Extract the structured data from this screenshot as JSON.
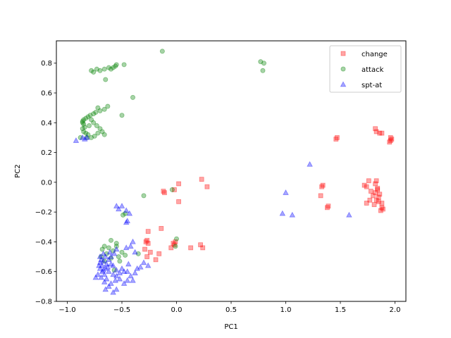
{
  "chart_data": {
    "type": "scatter",
    "title": "",
    "xlabel": "PC1",
    "ylabel": "PC2",
    "xlim": [
      -1.1,
      2.1
    ],
    "ylim": [
      -0.8,
      0.95
    ],
    "xticks": [
      -1.0,
      -0.5,
      0.0,
      0.5,
      1.0,
      1.5,
      2.0
    ],
    "xtick_labels": [
      "−1.0",
      "−0.5",
      "0.0",
      "0.5",
      "1.0",
      "1.5",
      "2.0"
    ],
    "yticks": [
      -0.8,
      -0.6,
      -0.4,
      -0.2,
      0.0,
      0.2,
      0.4,
      0.6,
      0.8
    ],
    "ytick_labels": [
      "−0.8",
      "−0.6",
      "−0.4",
      "−0.2",
      "0.0",
      "0.2",
      "0.4",
      "0.6",
      "0.8"
    ],
    "grid": false,
    "legend_position": "top-right",
    "series": [
      {
        "name": "change",
        "marker": "square",
        "color": "#ff0000",
        "alpha": 0.35,
        "points": [
          [
            0.23,
            0.02
          ],
          [
            0.28,
            -0.03
          ],
          [
            0.02,
            -0.01
          ],
          [
            -0.02,
            -0.05
          ],
          [
            -0.12,
            -0.06
          ],
          [
            -0.11,
            -0.07
          ],
          [
            0.02,
            -0.13
          ],
          [
            -0.14,
            -0.31
          ],
          [
            -0.26,
            -0.33
          ],
          [
            -0.27,
            -0.39
          ],
          [
            -0.28,
            -0.4
          ],
          [
            -0.26,
            -0.41
          ],
          [
            -0.29,
            -0.45
          ],
          [
            -0.24,
            -0.47
          ],
          [
            -0.27,
            -0.5
          ],
          [
            -0.19,
            -0.52
          ],
          [
            -0.16,
            -0.48
          ],
          [
            -0.05,
            -0.44
          ],
          [
            -0.03,
            -0.41
          ],
          [
            -0.01,
            -0.4
          ],
          [
            0.13,
            -0.44
          ],
          [
            0.22,
            -0.42
          ],
          [
            0.24,
            -0.44
          ],
          [
            -0.02,
            -0.42
          ],
          [
            1.46,
            0.29
          ],
          [
            1.47,
            0.3
          ],
          [
            1.82,
            0.36
          ],
          [
            1.83,
            0.34
          ],
          [
            1.86,
            0.33
          ],
          [
            1.88,
            0.33
          ],
          [
            1.96,
            0.28
          ],
          [
            1.97,
            0.29
          ],
          [
            1.95,
            0.27
          ],
          [
            1.96,
            0.3
          ],
          [
            1.34,
            -0.02
          ],
          [
            1.33,
            -0.03
          ],
          [
            1.32,
            -0.09
          ],
          [
            1.38,
            -0.17
          ],
          [
            1.39,
            -0.16
          ],
          [
            1.72,
            -0.02
          ],
          [
            1.74,
            -0.03
          ],
          [
            1.76,
            0.01
          ],
          [
            1.78,
            -0.06
          ],
          [
            1.8,
            -0.09
          ],
          [
            1.77,
            -0.12
          ],
          [
            1.74,
            -0.14
          ],
          [
            1.82,
            -0.01
          ],
          [
            1.83,
            0.01
          ],
          [
            1.84,
            -0.04
          ],
          [
            1.82,
            -0.07
          ],
          [
            1.85,
            -0.1
          ],
          [
            1.83,
            -0.12
          ],
          [
            1.86,
            -0.08
          ],
          [
            1.85,
            -0.13
          ],
          [
            1.88,
            -0.14
          ],
          [
            1.88,
            -0.17
          ],
          [
            1.89,
            -0.18
          ],
          [
            1.87,
            -0.19
          ],
          [
            1.81,
            -0.15
          ],
          [
            1.84,
            -0.05
          ]
        ]
      },
      {
        "name": "attack",
        "marker": "circle",
        "color": "#008000",
        "alpha": 0.35,
        "points": [
          [
            -0.13,
            0.88
          ],
          [
            0.77,
            0.81
          ],
          [
            0.8,
            0.8
          ],
          [
            0.79,
            0.75
          ],
          [
            -0.48,
            0.79
          ],
          [
            -0.55,
            0.79
          ],
          [
            -0.56,
            0.78
          ],
          [
            -0.58,
            0.77
          ],
          [
            -0.6,
            0.76
          ],
          [
            -0.62,
            0.77
          ],
          [
            -0.66,
            0.76
          ],
          [
            -0.7,
            0.75
          ],
          [
            -0.73,
            0.76
          ],
          [
            -0.76,
            0.74
          ],
          [
            -0.78,
            0.75
          ],
          [
            -0.65,
            0.69
          ],
          [
            -0.4,
            0.57
          ],
          [
            -0.5,
            0.45
          ],
          [
            -0.63,
            0.51
          ],
          [
            -0.66,
            0.49
          ],
          [
            -0.7,
            0.48
          ],
          [
            -0.72,
            0.5
          ],
          [
            -0.74,
            0.47
          ],
          [
            -0.76,
            0.46
          ],
          [
            -0.79,
            0.45
          ],
          [
            -0.81,
            0.44
          ],
          [
            -0.83,
            0.43
          ],
          [
            -0.85,
            0.42
          ],
          [
            -0.86,
            0.41
          ],
          [
            -0.85,
            0.39
          ],
          [
            -0.84,
            0.37
          ],
          [
            -0.86,
            0.36
          ],
          [
            -0.85,
            0.34
          ],
          [
            -0.83,
            0.33
          ],
          [
            -0.81,
            0.32
          ],
          [
            -0.78,
            0.3
          ],
          [
            -0.75,
            0.31
          ],
          [
            -0.72,
            0.33
          ],
          [
            -0.7,
            0.36
          ],
          [
            -0.73,
            0.38
          ],
          [
            -0.76,
            0.4
          ],
          [
            -0.78,
            0.42
          ],
          [
            -0.8,
            0.38
          ],
          [
            -0.82,
            0.3
          ],
          [
            -0.68,
            0.34
          ],
          [
            -0.66,
            0.32
          ],
          [
            -0.88,
            0.3
          ],
          [
            -0.86,
            0.4
          ],
          [
            -0.3,
            -0.09
          ],
          [
            -0.47,
            -0.21
          ],
          [
            -0.49,
            -0.22
          ],
          [
            -0.6,
            -0.39
          ],
          [
            -0.66,
            -0.43
          ],
          [
            -0.68,
            -0.45
          ],
          [
            -0.62,
            -0.44
          ],
          [
            -0.58,
            -0.46
          ],
          [
            -0.55,
            -0.43
          ],
          [
            -0.5,
            -0.47
          ],
          [
            -0.47,
            -0.49
          ],
          [
            -0.53,
            -0.5
          ],
          [
            -0.6,
            -0.51
          ],
          [
            -0.64,
            -0.48
          ],
          [
            -0.69,
            -0.5
          ],
          [
            -0.66,
            -0.53
          ],
          [
            -0.52,
            -0.53
          ],
          [
            -0.35,
            -0.48
          ],
          [
            -0.55,
            -0.41
          ],
          [
            0.0,
            -0.38
          ],
          [
            -0.01,
            -0.43
          ],
          [
            -0.04,
            -0.05
          ],
          [
            -0.57,
            -0.59
          ]
        ]
      },
      {
        "name": "spt-at",
        "marker": "triangle",
        "color": "#0000ff",
        "alpha": 0.35,
        "points": [
          [
            -0.92,
            0.28
          ],
          [
            -0.86,
            0.3
          ],
          [
            -0.82,
            0.3
          ],
          [
            -0.84,
            0.29
          ],
          [
            1.22,
            0.12
          ],
          [
            1.0,
            -0.07
          ],
          [
            0.97,
            -0.21
          ],
          [
            1.06,
            -0.22
          ],
          [
            1.58,
            -0.22
          ],
          [
            -0.55,
            -0.16
          ],
          [
            -0.53,
            -0.18
          ],
          [
            -0.5,
            -0.16
          ],
          [
            -0.46,
            -0.19
          ],
          [
            -0.43,
            -0.21
          ],
          [
            -0.45,
            -0.26
          ],
          [
            -0.46,
            -0.27
          ],
          [
            -0.4,
            -0.4
          ],
          [
            -0.42,
            -0.43
          ],
          [
            -0.46,
            -0.44
          ],
          [
            -0.38,
            -0.47
          ],
          [
            -0.3,
            -0.54
          ],
          [
            -0.33,
            -0.57
          ],
          [
            -0.26,
            -0.56
          ],
          [
            -0.38,
            -0.61
          ],
          [
            -0.42,
            -0.63
          ],
          [
            -0.45,
            -0.66
          ],
          [
            -0.48,
            -0.68
          ],
          [
            -0.52,
            -0.65
          ],
          [
            -0.55,
            -0.63
          ],
          [
            -0.58,
            -0.62
          ],
          [
            -0.62,
            -0.6
          ],
          [
            -0.65,
            -0.58
          ],
          [
            -0.68,
            -0.56
          ],
          [
            -0.7,
            -0.54
          ],
          [
            -0.67,
            -0.53
          ],
          [
            -0.64,
            -0.55
          ],
          [
            -0.62,
            -0.52
          ],
          [
            -0.6,
            -0.5
          ],
          [
            -0.57,
            -0.48
          ],
          [
            -0.55,
            -0.45
          ],
          [
            -0.67,
            -0.48
          ],
          [
            -0.7,
            -0.5
          ],
          [
            -0.72,
            -0.62
          ],
          [
            -0.74,
            -0.64
          ],
          [
            -0.69,
            -0.64
          ],
          [
            -0.66,
            -0.67
          ],
          [
            -0.62,
            -0.7
          ],
          [
            -0.55,
            -0.72
          ],
          [
            -0.58,
            -0.74
          ],
          [
            -0.65,
            -0.72
          ],
          [
            -0.68,
            -0.6
          ],
          [
            -0.7,
            -0.58
          ],
          [
            -0.66,
            -0.62
          ],
          [
            -0.64,
            -0.65
          ],
          [
            -0.6,
            -0.68
          ],
          [
            -0.56,
            -0.66
          ],
          [
            -0.5,
            -0.58
          ],
          [
            -0.48,
            -0.6
          ],
          [
            -0.52,
            -0.61
          ],
          [
            -0.45,
            -0.6
          ],
          [
            -0.6,
            -0.55
          ],
          [
            -0.63,
            -0.57
          ],
          [
            -0.67,
            -0.59
          ],
          [
            -0.71,
            -0.56
          ],
          [
            -0.69,
            -0.52
          ],
          [
            -0.65,
            -0.5
          ],
          [
            -0.61,
            -0.47
          ],
          [
            -0.58,
            -0.56
          ],
          [
            -0.55,
            -0.59
          ],
          [
            -0.4,
            -0.66
          ],
          [
            -0.36,
            -0.58
          ],
          [
            -0.44,
            -0.55
          ]
        ]
      }
    ]
  }
}
